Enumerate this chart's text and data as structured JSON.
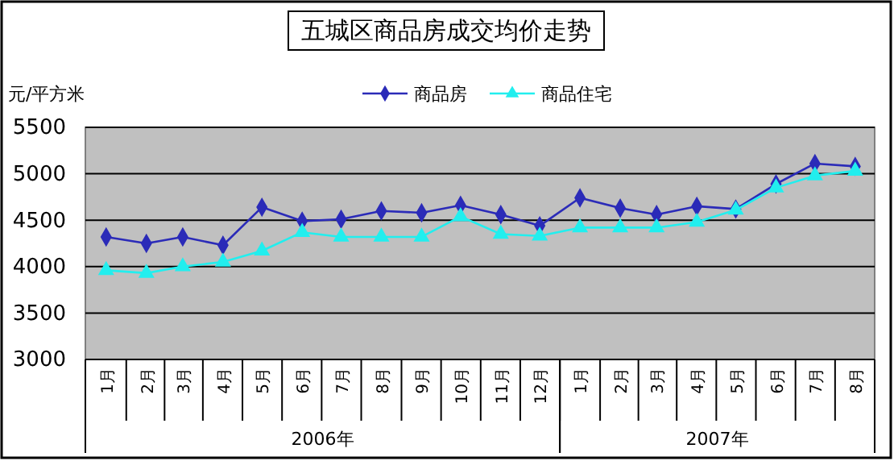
{
  "chart_data": {
    "type": "line",
    "title": "五城区商品房成交均价走势",
    "ylabel": "元/平方米",
    "x": [
      "2006-01",
      "2006-02",
      "2006-03",
      "2006-04",
      "2006-05",
      "2006-06",
      "2006-07",
      "2006-08",
      "2006-09",
      "2006-10",
      "2006-11",
      "2006-12",
      "2007-01",
      "2007-02",
      "2007-03",
      "2007-04",
      "2007-05",
      "2007-06",
      "2007-07",
      "2007-08"
    ],
    "xticks": [
      {
        "value": "2006-01",
        "label": "1月"
      },
      {
        "value": "2006-02",
        "label": "2月"
      },
      {
        "value": "2006-03",
        "label": "3月"
      },
      {
        "value": "2006-04",
        "label": "4月"
      },
      {
        "value": "2006-05",
        "label": "5月"
      },
      {
        "value": "2006-06",
        "label": "6月"
      },
      {
        "value": "2006-07",
        "label": "7月"
      },
      {
        "value": "2006-08",
        "label": "8月"
      },
      {
        "value": "2006-09",
        "label": "9月"
      },
      {
        "value": "2006-10",
        "label": "10月"
      },
      {
        "value": "2006-11",
        "label": "11月"
      },
      {
        "value": "2006-12",
        "label": "12月"
      },
      {
        "value": "2007-01",
        "label": "1月"
      },
      {
        "value": "2007-02",
        "label": "2月"
      },
      {
        "value": "2007-03",
        "label": "3月"
      },
      {
        "value": "2007-04",
        "label": "4月"
      },
      {
        "value": "2007-05",
        "label": "5月"
      },
      {
        "value": "2007-06",
        "label": "6月"
      },
      {
        "value": "2007-07",
        "label": "7月"
      },
      {
        "value": "2007-08",
        "label": "8月"
      }
    ],
    "xlim": [
      "2005-12-16",
      "2007-08-16"
    ],
    "annotations": [
      "2006年",
      "2007年"
    ],
    "series": [
      {
        "name": "商品房",
        "color": "#2b2bb8",
        "marker": "diamond",
        "values": [
          4320,
          4250,
          4320,
          4230,
          4640,
          4490,
          4510,
          4600,
          4580,
          4660,
          4560,
          4440,
          4740,
          4630,
          4560,
          4650,
          4620,
          4890,
          5110,
          5080
        ]
      },
      {
        "name": "商品住宅",
        "color": "#22eeee",
        "marker": "triangle",
        "values": [
          3960,
          3930,
          4000,
          4050,
          4170,
          4370,
          4320,
          4320,
          4320,
          4540,
          4350,
          4330,
          4420,
          4420,
          4420,
          4480,
          4610,
          4850,
          4980,
          5030
        ]
      }
    ],
    "ylim": [
      3000,
      5500
    ],
    "yticks": [
      3000,
      3500,
      4000,
      4500,
      5000,
      5500
    ],
    "grid": "y",
    "legend": "top right",
    "line_style": "solid"
  }
}
